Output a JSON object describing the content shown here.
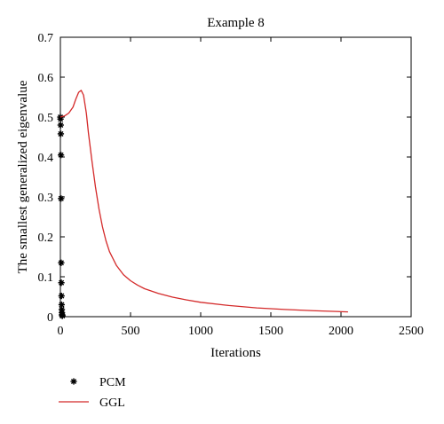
{
  "chart_data": {
    "type": "line",
    "title": "Example 8",
    "xlabel": "Iterations",
    "ylabel": "The smallest generalized eigenvalue",
    "xlim": [
      0,
      2500
    ],
    "ylim": [
      0,
      0.7
    ],
    "xticks": [
      0,
      500,
      1000,
      1500,
      2000,
      2500
    ],
    "yticks": [
      0,
      0.1,
      0.2,
      0.3,
      0.4,
      0.5,
      0.6,
      0.7
    ],
    "xtick_labels": [
      "0",
      "500",
      "1000",
      "1500",
      "2000",
      "2500"
    ],
    "ytick_labels": [
      "0",
      "0.1",
      "0.2",
      "0.3",
      "0.4",
      "0.5",
      "0.6",
      "0.7"
    ],
    "grid": false,
    "legend_position": "bottom-left, below plot",
    "series": [
      {
        "name": "PCM",
        "style": "markers-only",
        "marker": "asterisk",
        "color": "#000000",
        "points": [
          [
            0,
            0.5
          ],
          [
            1,
            0.495
          ],
          [
            2,
            0.48
          ],
          [
            3,
            0.458
          ],
          [
            4,
            0.405
          ],
          [
            5,
            0.296
          ],
          [
            6,
            0.135
          ],
          [
            7,
            0.085
          ],
          [
            8,
            0.052
          ],
          [
            9,
            0.03
          ],
          [
            10,
            0.018
          ],
          [
            11,
            0.01
          ],
          [
            12,
            0.005
          ],
          [
            13,
            0.003
          ],
          [
            14,
            0.002
          ]
        ]
      },
      {
        "name": "GGL",
        "style": "line",
        "color": "#d42a2a",
        "points": [
          [
            0,
            0.5
          ],
          [
            30,
            0.503
          ],
          [
            60,
            0.51
          ],
          [
            90,
            0.525
          ],
          [
            110,
            0.545
          ],
          [
            130,
            0.562
          ],
          [
            148,
            0.567
          ],
          [
            165,
            0.555
          ],
          [
            185,
            0.51
          ],
          [
            200,
            0.46
          ],
          [
            225,
            0.39
          ],
          [
            250,
            0.325
          ],
          [
            275,
            0.27
          ],
          [
            300,
            0.225
          ],
          [
            325,
            0.19
          ],
          [
            350,
            0.163
          ],
          [
            400,
            0.128
          ],
          [
            450,
            0.105
          ],
          [
            500,
            0.09
          ],
          [
            550,
            0.079
          ],
          [
            600,
            0.07
          ],
          [
            700,
            0.058
          ],
          [
            800,
            0.049
          ],
          [
            900,
            0.042
          ],
          [
            1000,
            0.036
          ],
          [
            1200,
            0.028
          ],
          [
            1400,
            0.022
          ],
          [
            1600,
            0.018
          ],
          [
            1800,
            0.015
          ],
          [
            2050,
            0.012
          ]
        ]
      }
    ]
  }
}
